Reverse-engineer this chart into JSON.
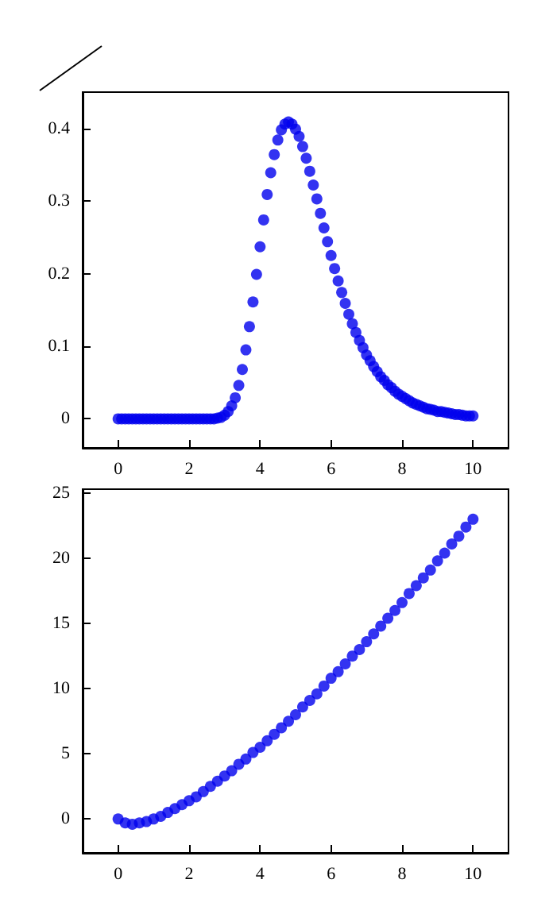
{
  "chart_data": [
    {
      "type": "scatter",
      "marker": "circle",
      "color": "#0000ee",
      "x": [
        0,
        0.1,
        0.2,
        0.3,
        0.4,
        0.5,
        0.6,
        0.7,
        0.8,
        0.9,
        1,
        1.1,
        1.2,
        1.3,
        1.4,
        1.5,
        1.6,
        1.7,
        1.8,
        1.9,
        2,
        2.1,
        2.2,
        2.3,
        2.4,
        2.5,
        2.6,
        2.7,
        2.8,
        2.9,
        3,
        3.1,
        3.2,
        3.3,
        3.4,
        3.5,
        3.6,
        3.7,
        3.8,
        3.9,
        4,
        4.1,
        4.2,
        4.3,
        4.4,
        4.5,
        4.6,
        4.7,
        4.8,
        4.9,
        5,
        5.1,
        5.2,
        5.3,
        5.4,
        5.5,
        5.6,
        5.7,
        5.8,
        5.9,
        6,
        6.1,
        6.2,
        6.3,
        6.4,
        6.5,
        6.6,
        6.7,
        6.8,
        6.9,
        7,
        7.1,
        7.2,
        7.3,
        7.4,
        7.5,
        7.6,
        7.7,
        7.8,
        7.9,
        8,
        8.1,
        8.2,
        8.3,
        8.4,
        8.5,
        8.6,
        8.7,
        8.8,
        8.9,
        9,
        9.1,
        9.2,
        9.3,
        9.4,
        9.5,
        9.6,
        9.7,
        9.8,
        9.9,
        10
      ],
      "values": [
        0,
        0,
        0,
        0,
        0,
        0,
        0,
        0,
        0,
        0,
        0,
        0,
        0,
        0,
        0,
        0,
        0,
        0,
        0,
        0,
        0,
        0,
        0,
        0,
        0,
        0,
        0,
        0,
        0.001,
        0.002,
        0.005,
        0.01,
        0.018,
        0.029,
        0.046,
        0.068,
        0.095,
        0.127,
        0.161,
        0.199,
        0.237,
        0.274,
        0.309,
        0.339,
        0.364,
        0.384,
        0.398,
        0.406,
        0.409,
        0.406,
        0.399,
        0.389,
        0.375,
        0.359,
        0.341,
        0.322,
        0.303,
        0.283,
        0.263,
        0.244,
        0.225,
        0.207,
        0.19,
        0.174,
        0.159,
        0.144,
        0.131,
        0.119,
        0.108,
        0.098,
        0.088,
        0.08,
        0.072,
        0.065,
        0.058,
        0.053,
        0.047,
        0.043,
        0.038,
        0.034,
        0.031,
        0.028,
        0.025,
        0.022,
        0.02,
        0.018,
        0.016,
        0.014,
        0.013,
        0.012,
        0.01,
        0.01,
        0.009,
        0.008,
        0.007,
        0.006,
        0.006,
        0.005,
        0.004,
        0.004,
        0.004
      ],
      "xlim": [
        -1,
        11
      ],
      "xticks": [
        0,
        2,
        4,
        6,
        8,
        10
      ],
      "ylim": [
        -0.04,
        0.45
      ],
      "yticks": [
        0,
        0.1,
        0.2,
        0.3,
        0.4
      ],
      "grid": false
    },
    {
      "type": "scatter",
      "marker": "circle",
      "color": "#0000ee",
      "x": [
        0,
        0.2,
        0.4,
        0.6,
        0.8,
        1,
        1.2,
        1.4,
        1.6,
        1.8,
        2,
        2.2,
        2.4,
        2.6,
        2.8,
        3,
        3.2,
        3.4,
        3.6,
        3.8,
        4,
        4.2,
        4.4,
        4.6,
        4.8,
        5,
        5.2,
        5.4,
        5.6,
        5.8,
        6,
        6.2,
        6.4,
        6.6,
        6.8,
        7,
        7.2,
        7.4,
        7.6,
        7.8,
        8,
        8.2,
        8.4,
        8.6,
        8.8,
        9,
        9.2,
        9.4,
        9.6,
        9.8,
        10
      ],
      "values": [
        0,
        -0.3,
        -0.4,
        -0.3,
        -0.2,
        0,
        0.2,
        0.5,
        0.8,
        1.1,
        1.4,
        1.7,
        2.1,
        2.5,
        2.9,
        3.3,
        3.7,
        4.2,
        4.6,
        5.1,
        5.5,
        6.0,
        6.5,
        7.0,
        7.5,
        8.0,
        8.6,
        9.1,
        9.6,
        10.2,
        10.8,
        11.3,
        11.9,
        12.5,
        13.0,
        13.6,
        14.2,
        14.8,
        15.4,
        16.0,
        16.6,
        17.3,
        17.9,
        18.5,
        19.1,
        19.8,
        20.4,
        21.1,
        21.7,
        22.4,
        23.0
      ],
      "xlim": [
        -1,
        11
      ],
      "xticks": [
        0,
        2,
        4,
        6,
        8,
        10
      ],
      "ylim": [
        -2.6,
        25.3
      ],
      "yticks": [
        0,
        5,
        10,
        15,
        20,
        25
      ],
      "grid": false
    }
  ]
}
